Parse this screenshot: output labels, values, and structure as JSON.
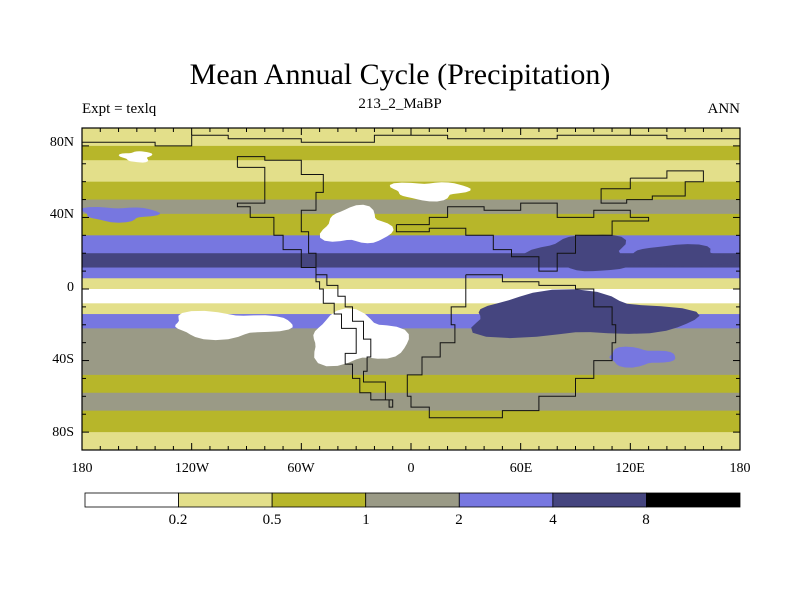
{
  "title": "Mean Annual Cycle (Precipitation)",
  "subtitle_left": "Expt = texlq",
  "subtitle_center": "213_2_MaBP",
  "subtitle_right": "ANN",
  "y_tick_labels": [
    "80N",
    "40N",
    "0",
    "40S",
    "80S"
  ],
  "x_tick_labels": [
    "180",
    "120W",
    "60W",
    "0",
    "60E",
    "120E",
    "180"
  ],
  "colorbar": {
    "bounds": [
      "0.2",
      "0.5",
      "1",
      "2",
      "4",
      "8"
    ],
    "colors": [
      "#ffffff",
      "#e3df8a",
      "#b7b62a",
      "#9a9a86",
      "#7777e0",
      "#45457f",
      "#000000"
    ]
  },
  "bands": [
    {
      "lat0": 90,
      "lat1": 80,
      "level": 1
    },
    {
      "lat0": 80,
      "lat1": 72,
      "level": 2
    },
    {
      "lat0": 72,
      "lat1": 60,
      "level": 1
    },
    {
      "lat0": 60,
      "lat1": 50,
      "level": 2
    },
    {
      "lat0": 50,
      "lat1": 42,
      "level": 3
    },
    {
      "lat0": 42,
      "lat1": 30,
      "level": 2
    },
    {
      "lat0": 30,
      "lat1": 20,
      "level": 4
    },
    {
      "lat0": 20,
      "lat1": 12,
      "level": 5
    },
    {
      "lat0": 12,
      "lat1": 6,
      "level": 4
    },
    {
      "lat0": 6,
      "lat1": 0,
      "level": 1
    },
    {
      "lat0": 0,
      "lat1": -8,
      "level": 0
    },
    {
      "lat0": -8,
      "lat1": -14,
      "level": 1
    },
    {
      "lat0": -14,
      "lat1": -22,
      "level": 4
    },
    {
      "lat0": -22,
      "lat1": -30,
      "level": 3
    },
    {
      "lat0": -30,
      "lat1": -48,
      "level": 3
    },
    {
      "lat0": -48,
      "lat1": -58,
      "level": 2
    },
    {
      "lat0": -58,
      "lat1": -68,
      "level": 3
    },
    {
      "lat0": -68,
      "lat1": -80,
      "level": 2
    },
    {
      "lat0": -80,
      "lat1": -90,
      "level": 1
    }
  ],
  "blobs": [
    {
      "name": "white-zone-n-atlantic",
      "lon": -30,
      "lat": 35,
      "rlon": 18,
      "rlat": 10,
      "level": 0
    },
    {
      "name": "white-zone-s-atlantic",
      "lon": -30,
      "lat": -28,
      "rlon": 26,
      "rlat": 14,
      "level": 0
    },
    {
      "name": "white-zone-e-pacific-s",
      "lon": -100,
      "lat": -20,
      "rlon": 32,
      "rlat": 7,
      "level": 0
    },
    {
      "name": "white-zone-asia",
      "lon": 10,
      "lat": 55,
      "rlon": 20,
      "rlat": 5,
      "level": 0
    },
    {
      "name": "white-zone-arctic",
      "lon": -150,
      "lat": 74,
      "rlon": 8,
      "rlat": 3,
      "level": 0
    },
    {
      "name": "dark-zone-w-pacific",
      "lon": 95,
      "lat": 20,
      "rlon": 26,
      "rlat": 10,
      "level": 5
    },
    {
      "name": "dark-zone-c-pacific",
      "lon": 145,
      "lat": 18,
      "rlon": 30,
      "rlat": 6,
      "level": 5
    },
    {
      "name": "dark-zone-indian-s",
      "lon": 90,
      "lat": -15,
      "rlon": 60,
      "rlat": 12,
      "level": 5
    },
    {
      "name": "blue-zone-s-indian",
      "lon": 125,
      "lat": -38,
      "rlon": 18,
      "rlat": 5,
      "level": 4
    },
    {
      "name": "blue-zone-n-pacific",
      "lon": -160,
      "lat": 42,
      "rlon": 20,
      "rlat": 4,
      "level": 4
    }
  ],
  "land_outlines": [
    [
      [
        -180,
        82
      ],
      [
        -140,
        80
      ],
      [
        -120,
        86
      ],
      [
        -100,
        84
      ],
      [
        -60,
        82
      ],
      [
        -20,
        86
      ],
      [
        20,
        84
      ],
      [
        80,
        86
      ],
      [
        140,
        84
      ],
      [
        180,
        82
      ]
    ],
    [
      [
        -95,
        68
      ],
      [
        -80,
        62
      ],
      [
        -80,
        48
      ],
      [
        -95,
        46
      ],
      [
        -88,
        40
      ],
      [
        -75,
        30
      ],
      [
        -70,
        22
      ],
      [
        -60,
        12
      ],
      [
        -52,
        4
      ],
      [
        -50,
        0
      ],
      [
        -48,
        -8
      ],
      [
        -42,
        -14
      ],
      [
        -38,
        -22
      ],
      [
        -30,
        -28
      ],
      [
        -30,
        -36
      ],
      [
        -36,
        -42
      ],
      [
        -32,
        -50
      ],
      [
        -28,
        -58
      ],
      [
        -22,
        -62
      ],
      [
        -12,
        -66
      ],
      [
        -10,
        -62
      ],
      [
        -14,
        -52
      ],
      [
        -26,
        -46
      ],
      [
        -24,
        -38
      ],
      [
        -22,
        -28
      ],
      [
        -26,
        -18
      ],
      [
        -32,
        -10
      ],
      [
        -36,
        -4
      ],
      [
        -40,
        2
      ],
      [
        -46,
        8
      ],
      [
        -52,
        20
      ],
      [
        -56,
        32
      ],
      [
        -60,
        44
      ],
      [
        -52,
        54
      ],
      [
        -48,
        64
      ],
      [
        -60,
        72
      ],
      [
        -80,
        74
      ],
      [
        -95,
        68
      ]
    ],
    [
      [
        -8,
        36
      ],
      [
        10,
        40
      ],
      [
        20,
        46
      ],
      [
        40,
        44
      ],
      [
        60,
        48
      ],
      [
        80,
        40
      ],
      [
        100,
        44
      ],
      [
        120,
        40
      ],
      [
        130,
        38
      ],
      [
        110,
        30
      ],
      [
        90,
        20
      ],
      [
        80,
        10
      ],
      [
        70,
        18
      ],
      [
        55,
        22
      ],
      [
        45,
        30
      ],
      [
        30,
        34
      ],
      [
        10,
        32
      ],
      [
        -8,
        36
      ]
    ],
    [
      [
        30,
        8
      ],
      [
        50,
        4
      ],
      [
        70,
        2
      ],
      [
        90,
        0
      ],
      [
        100,
        -10
      ],
      [
        110,
        -20
      ],
      [
        112,
        -30
      ],
      [
        110,
        -40
      ],
      [
        100,
        -50
      ],
      [
        90,
        -60
      ],
      [
        70,
        -68
      ],
      [
        50,
        -72
      ],
      [
        30,
        -72
      ],
      [
        10,
        -66
      ],
      [
        0,
        -60
      ],
      [
        -2,
        -48
      ],
      [
        6,
        -38
      ],
      [
        16,
        -30
      ],
      [
        24,
        -20
      ],
      [
        22,
        -10
      ],
      [
        30,
        8
      ]
    ],
    [
      [
        120,
        62
      ],
      [
        140,
        66
      ],
      [
        160,
        60
      ],
      [
        150,
        52
      ],
      [
        132,
        50
      ],
      [
        118,
        48
      ],
      [
        104,
        56
      ],
      [
        120,
        62
      ]
    ]
  ]
}
